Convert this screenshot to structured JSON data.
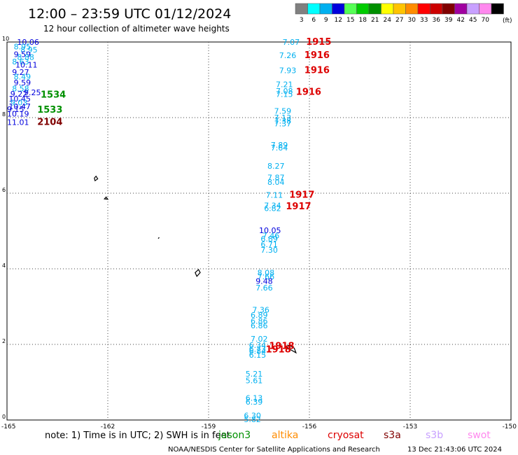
{
  "header": {
    "title": "12:00 – 23:59 UTC 01/12/2024",
    "subtitle": "12 hour collection of altimeter wave heights"
  },
  "colorbar": {
    "unit": "(ft)",
    "bins": [
      {
        "label": "3",
        "color": "#808080"
      },
      {
        "label": "6",
        "color": "#00ffff"
      },
      {
        "label": "9",
        "color": "#00b0f0"
      },
      {
        "label": "12",
        "color": "#0000dd"
      },
      {
        "label": "15",
        "color": "#55ff55"
      },
      {
        "label": "18",
        "color": "#00cc00"
      },
      {
        "label": "21",
        "color": "#009000"
      },
      {
        "label": "24",
        "color": "#ffff00"
      },
      {
        "label": "27",
        "color": "#ffc400"
      },
      {
        "label": "30",
        "color": "#ff8c00"
      },
      {
        "label": "33",
        "color": "#ff0000"
      },
      {
        "label": "36",
        "color": "#cc0000"
      },
      {
        "label": "39",
        "color": "#800000"
      },
      {
        "label": "42",
        "color": "#a000a0"
      },
      {
        "label": "45",
        "color": "#c8a0ff"
      },
      {
        "label": "70",
        "color": "#ff88ee"
      },
      {
        "label": "",
        "color": "#000000"
      }
    ]
  },
  "footer": {
    "note": "note:  1) Time is in UTC; 2) SWH is in feet",
    "satellites": [
      {
        "name": "jason3",
        "color": "#009000"
      },
      {
        "name": "altika",
        "color": "#ff8c00"
      },
      {
        "name": "cryosat",
        "color": "#dd0000"
      },
      {
        "name": "s3a",
        "color": "#800000"
      },
      {
        "name": "s3b",
        "color": "#c8a0ff"
      },
      {
        "name": "swot",
        "color": "#ff88ee"
      }
    ],
    "credit": "NOAA/NESDIS Center for Satellite Applications and Research",
    "generated": "13 Dec 21:43:06 UTC 2024"
  },
  "chart_data": {
    "type": "scatter",
    "title": "12:00 – 23:59 UTC 01/12/2024",
    "xlim": [
      -165,
      -150
    ],
    "ylim": [
      0,
      10
    ],
    "x_ticks": [
      "-165",
      "-162",
      "-159",
      "-156",
      "-153",
      "-150"
    ],
    "y_ticks": [
      "0",
      "2",
      "4",
      "6",
      "8",
      "10"
    ],
    "grid": true,
    "coastlines": [
      [
        [
          -162.4,
          6.4
        ],
        [
          -162.35,
          6.45
        ],
        [
          -162.3,
          6.38
        ],
        [
          -162.38,
          6.33
        ]
      ],
      [
        [
          -162.1,
          5.85
        ],
        [
          -162.05,
          5.9
        ],
        [
          -162.0,
          5.84
        ]
      ],
      [
        [
          -160.5,
          4.8
        ],
        [
          -160.47,
          4.83
        ]
      ],
      [
        [
          -159.4,
          3.9
        ],
        [
          -159.3,
          3.98
        ],
        [
          -159.25,
          3.9
        ],
        [
          -159.35,
          3.8
        ]
      ],
      [
        [
          -156.6,
          1.98
        ],
        [
          -156.45,
          1.9
        ],
        [
          -156.4,
          1.78
        ],
        [
          -156.6,
          1.88
        ],
        [
          -156.7,
          1.95
        ]
      ]
    ],
    "labels": [
      {
        "lon": -164.7,
        "lat": 10.0,
        "text": "10.06",
        "color": "#0000dd"
      },
      {
        "lon": -164.8,
        "lat": 9.88,
        "text": "8.95",
        "color": "#00b0f0"
      },
      {
        "lon": -164.6,
        "lat": 9.8,
        "text": "8.95",
        "color": "#00b0f0"
      },
      {
        "lon": -164.8,
        "lat": 9.68,
        "text": "9.59",
        "color": "#0000dd"
      },
      {
        "lon": -164.7,
        "lat": 9.6,
        "text": "8.88",
        "color": "#00b0f0"
      },
      {
        "lon": -164.85,
        "lat": 9.48,
        "text": "8.63",
        "color": "#00b0f0"
      },
      {
        "lon": -164.75,
        "lat": 9.4,
        "text": "10.11",
        "color": "#0000dd"
      },
      {
        "lon": -164.85,
        "lat": 9.2,
        "text": "9.27",
        "color": "#0000dd"
      },
      {
        "lon": -164.8,
        "lat": 9.08,
        "text": "8.49",
        "color": "#00b0f0"
      },
      {
        "lon": -164.8,
        "lat": 8.93,
        "text": "9.59",
        "color": "#0000dd"
      },
      {
        "lon": -164.85,
        "lat": 8.77,
        "text": "8.58",
        "color": "#00b0f0"
      },
      {
        "lon": -164.9,
        "lat": 8.63,
        "text": "9.22",
        "color": "#0000dd"
      },
      {
        "lon": -164.5,
        "lat": 8.67,
        "text": "9.25",
        "color": "#0000dd"
      },
      {
        "lon": -164.95,
        "lat": 8.5,
        "text": "10.45",
        "color": "#0000dd"
      },
      {
        "lon": -164.9,
        "lat": 8.4,
        "text": "9.03",
        "color": "#00b0f0"
      },
      {
        "lon": -164.95,
        "lat": 8.3,
        "text": "10.47",
        "color": "#0000dd"
      },
      {
        "lon": -165.0,
        "lat": 8.22,
        "text": "9.15",
        "color": "#0000dd"
      },
      {
        "lon": -165.0,
        "lat": 8.1,
        "text": "10.19",
        "color": "#0000dd"
      },
      {
        "lon": -165.0,
        "lat": 7.88,
        "text": "11.01",
        "color": "#0000dd"
      },
      {
        "lon": -164.0,
        "lat": 8.6,
        "text": "1534",
        "color": "#009000",
        "kind": "time"
      },
      {
        "lon": -164.1,
        "lat": 8.2,
        "text": "1533",
        "color": "#009000",
        "kind": "time"
      },
      {
        "lon": -164.1,
        "lat": 7.88,
        "text": "2104",
        "color": "#800000",
        "kind": "time"
      },
      {
        "lon": -156.8,
        "lat": 10.0,
        "text": "7.07",
        "color": "#00b0f0"
      },
      {
        "lon": -156.9,
        "lat": 9.65,
        "text": "7.26",
        "color": "#00b0f0"
      },
      {
        "lon": -156.9,
        "lat": 9.25,
        "text": "7.93",
        "color": "#00b0f0"
      },
      {
        "lon": -157.0,
        "lat": 8.88,
        "text": "7.21",
        "color": "#00b0f0"
      },
      {
        "lon": -157.0,
        "lat": 8.7,
        "text": "7.08",
        "color": "#00b0f0"
      },
      {
        "lon": -157.0,
        "lat": 8.62,
        "text": "7.15",
        "color": "#00b0f0"
      },
      {
        "lon": -157.05,
        "lat": 8.18,
        "text": "7.59",
        "color": "#00b0f0"
      },
      {
        "lon": -157.05,
        "lat": 8.0,
        "text": "7.13",
        "color": "#00b0f0"
      },
      {
        "lon": -157.05,
        "lat": 7.92,
        "text": "7.38",
        "color": "#00b0f0"
      },
      {
        "lon": -157.05,
        "lat": 7.84,
        "text": "7.37",
        "color": "#00b0f0"
      },
      {
        "lon": -157.15,
        "lat": 7.28,
        "text": "7.89",
        "color": "#00b0f0"
      },
      {
        "lon": -157.15,
        "lat": 7.2,
        "text": "7.64",
        "color": "#00b0f0"
      },
      {
        "lon": -157.25,
        "lat": 6.72,
        "text": "8.27",
        "color": "#00b0f0"
      },
      {
        "lon": -157.25,
        "lat": 6.42,
        "text": "7.87",
        "color": "#00b0f0"
      },
      {
        "lon": -157.25,
        "lat": 6.3,
        "text": "8.04",
        "color": "#00b0f0"
      },
      {
        "lon": -157.3,
        "lat": 5.95,
        "text": "7.11",
        "color": "#00b0f0"
      },
      {
        "lon": -157.35,
        "lat": 5.68,
        "text": "7.34",
        "color": "#00b0f0"
      },
      {
        "lon": -157.35,
        "lat": 5.6,
        "text": "6.82",
        "color": "#00b0f0"
      },
      {
        "lon": -157.5,
        "lat": 5.02,
        "text": "10.05",
        "color": "#0000dd"
      },
      {
        "lon": -157.4,
        "lat": 4.88,
        "text": "7.46",
        "color": "#00b0f0"
      },
      {
        "lon": -157.45,
        "lat": 4.8,
        "text": "6.89",
        "color": "#00b0f0"
      },
      {
        "lon": -157.45,
        "lat": 4.65,
        "text": "6.71",
        "color": "#00b0f0"
      },
      {
        "lon": -157.45,
        "lat": 4.5,
        "text": "7.30",
        "color": "#00b0f0"
      },
      {
        "lon": -157.55,
        "lat": 3.9,
        "text": "8.08",
        "color": "#00b0f0"
      },
      {
        "lon": -157.55,
        "lat": 3.8,
        "text": "7.66",
        "color": "#00b0f0"
      },
      {
        "lon": -157.6,
        "lat": 3.68,
        "text": "9.48",
        "color": "#0000dd"
      },
      {
        "lon": -157.6,
        "lat": 3.5,
        "text": "7.66",
        "color": "#00b0f0"
      },
      {
        "lon": -157.7,
        "lat": 2.92,
        "text": "7.36",
        "color": "#00b0f0"
      },
      {
        "lon": -157.75,
        "lat": 2.78,
        "text": "6.89",
        "color": "#00b0f0"
      },
      {
        "lon": -157.75,
        "lat": 2.62,
        "text": "6.86",
        "color": "#00b0f0"
      },
      {
        "lon": -157.75,
        "lat": 2.5,
        "text": "6.86",
        "color": "#00b0f0"
      },
      {
        "lon": -157.75,
        "lat": 2.15,
        "text": "7.02",
        "color": "#00b0f0"
      },
      {
        "lon": -157.8,
        "lat": 1.98,
        "text": "6.34",
        "color": "#00b0f0"
      },
      {
        "lon": -157.8,
        "lat": 1.88,
        "text": "6.73",
        "color": "#00b0f0"
      },
      {
        "lon": -157.8,
        "lat": 1.82,
        "text": "6.84",
        "color": "#00b0f0"
      },
      {
        "lon": -157.8,
        "lat": 1.72,
        "text": "6.15",
        "color": "#00b0f0"
      },
      {
        "lon": -157.9,
        "lat": 1.22,
        "text": "5.21",
        "color": "#00b0f0"
      },
      {
        "lon": -157.9,
        "lat": 1.05,
        "text": "5.61",
        "color": "#00b0f0"
      },
      {
        "lon": -157.9,
        "lat": 0.58,
        "text": "6.13",
        "color": "#00b0f0"
      },
      {
        "lon": -157.9,
        "lat": 0.48,
        "text": "6.39",
        "color": "#00b0f0"
      },
      {
        "lon": -157.95,
        "lat": 0.12,
        "text": "6.30",
        "color": "#00b0f0"
      },
      {
        "lon": -157.95,
        "lat": 0.02,
        "text": "5.82",
        "color": "#00b0f0"
      },
      {
        "lon": -156.1,
        "lat": 10.0,
        "text": "1915",
        "color": "#dd0000",
        "kind": "time"
      },
      {
        "lon": -156.15,
        "lat": 9.65,
        "text": "1916",
        "color": "#dd0000",
        "kind": "time"
      },
      {
        "lon": -156.15,
        "lat": 9.25,
        "text": "1916",
        "color": "#dd0000",
        "kind": "time"
      },
      {
        "lon": -156.4,
        "lat": 8.68,
        "text": "1916",
        "color": "#dd0000",
        "kind": "time"
      },
      {
        "lon": -156.6,
        "lat": 5.95,
        "text": "1917",
        "color": "#dd0000",
        "kind": "time"
      },
      {
        "lon": -156.7,
        "lat": 5.65,
        "text": "1917",
        "color": "#dd0000",
        "kind": "time"
      },
      {
        "lon": -157.2,
        "lat": 1.95,
        "text": "1918",
        "color": "#dd0000",
        "kind": "time"
      },
      {
        "lon": -157.3,
        "lat": 1.86,
        "text": "1918",
        "color": "#dd0000",
        "kind": "time"
      }
    ]
  }
}
